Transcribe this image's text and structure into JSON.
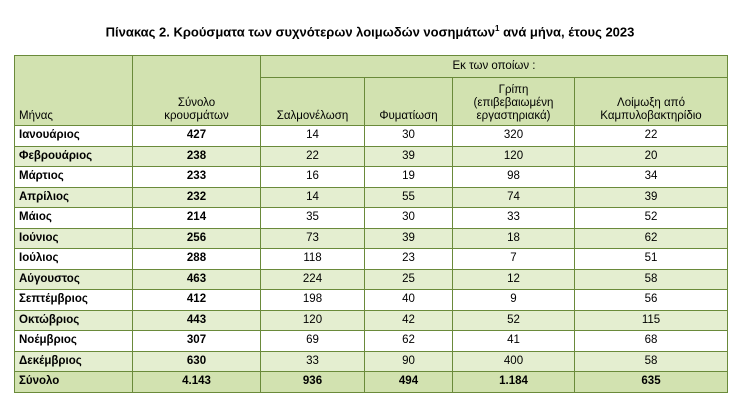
{
  "title": "Πίνακας 2. Κρούσματα των συχνότερων λοιμωδών νοσημάτων",
  "title_sup": "1",
  "title_tail": " ανά μήνα, έτους 2023",
  "header": {
    "month": "Μήνας",
    "total_line1": "Σύνολο",
    "total_line2": "κρουσμάτων",
    "group": "Εκ των οποίων :",
    "salmonellosis": "Σαλμονέλωση",
    "tuberculosis": "Φυματίωση",
    "flu_line1": "Γρίπη",
    "flu_line2": "(επιβεβαιωμένη",
    "flu_line3": "εργαστηριακά)",
    "campylo_line1": "Λοίμωξη από",
    "campylo_line2": "Καμπυλοβακτηρίδιο"
  },
  "rows": [
    {
      "month": "Ιανουάριος",
      "total": "427",
      "salmonellosis": "14",
      "tuberculosis": "30",
      "flu": "320",
      "campylo": "22"
    },
    {
      "month": "Φεβρουάριος",
      "total": "238",
      "salmonellosis": "22",
      "tuberculosis": "39",
      "flu": "120",
      "campylo": "20"
    },
    {
      "month": "Μάρτιος",
      "total": "233",
      "salmonellosis": "16",
      "tuberculosis": "19",
      "flu": "98",
      "campylo": "34"
    },
    {
      "month": "Απρίλιος",
      "total": "232",
      "salmonellosis": "14",
      "tuberculosis": "55",
      "flu": "74",
      "campylo": "39"
    },
    {
      "month": "Μάιος",
      "total": "214",
      "salmonellosis": "35",
      "tuberculosis": "30",
      "flu": "33",
      "campylo": "52"
    },
    {
      "month": "Ιούνιος",
      "total": "256",
      "salmonellosis": "73",
      "tuberculosis": "39",
      "flu": "18",
      "campylo": "62"
    },
    {
      "month": "Ιούλιος",
      "total": "288",
      "salmonellosis": "118",
      "tuberculosis": "23",
      "flu": "7",
      "campylo": "51"
    },
    {
      "month": "Αύγουστος",
      "total": "463",
      "salmonellosis": "224",
      "tuberculosis": "25",
      "flu": "12",
      "campylo": "58"
    },
    {
      "month": "Σεπτέμβριος",
      "total": "412",
      "salmonellosis": "198",
      "tuberculosis": "40",
      "flu": "9",
      "campylo": "56"
    },
    {
      "month": "Οκτώβριος",
      "total": "443",
      "salmonellosis": "120",
      "tuberculosis": "42",
      "flu": "52",
      "campylo": "115"
    },
    {
      "month": "Νοέμβριος",
      "total": "307",
      "salmonellosis": "69",
      "tuberculosis": "62",
      "flu": "41",
      "campylo": "68"
    },
    {
      "month": "Δεκέμβριος",
      "total": "630",
      "salmonellosis": "33",
      "tuberculosis": "90",
      "flu": "400",
      "campylo": "58"
    }
  ],
  "footer": {
    "month": "Σύνολο",
    "total": "4.143",
    "salmonellosis": "936",
    "tuberculosis": "494",
    "flu": "1.184",
    "campylo": "635"
  },
  "colors": {
    "header_bg": "#d2e2b0",
    "stripe_bg": "#e4eed0",
    "border": "#6a8a3a"
  }
}
